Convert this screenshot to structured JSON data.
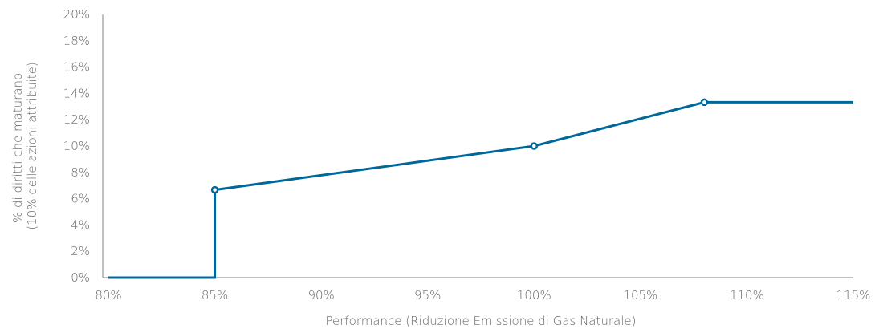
{
  "chart_data": {
    "type": "line",
    "title": "",
    "xlabel": "Performance (Riduzione Emissione di Gas Naturale)",
    "ylabel_lines": [
      "% di diritti che maturano",
      "(10% delle azioni attribuite)"
    ],
    "xlim": [
      80,
      115
    ],
    "ylim": [
      0,
      20
    ],
    "x_ticks": [
      80,
      85,
      90,
      95,
      100,
      105,
      110,
      115
    ],
    "x_tick_labels": [
      "80%",
      "85%",
      "90%",
      "95%",
      "100%",
      "105%",
      "110%",
      "115%"
    ],
    "y_ticks": [
      0,
      2,
      4,
      6,
      8,
      10,
      12,
      14,
      16,
      18,
      20
    ],
    "y_tick_labels": [
      "0%",
      "2%",
      "4%",
      "6%",
      "8%",
      "10%",
      "12%",
      "14%",
      "16%",
      "18%",
      "20%"
    ],
    "grid": false,
    "legend": "none",
    "series": [
      {
        "color": "#00679a",
        "points": [
          {
            "x": 80,
            "y": 0
          },
          {
            "x": 85,
            "y": 0
          },
          {
            "x": 85,
            "y": 6.67
          },
          {
            "x": 100,
            "y": 10
          },
          {
            "x": 108,
            "y": 13.33
          },
          {
            "x": 115,
            "y": 13.33
          }
        ],
        "markers": [
          {
            "x": 85,
            "y": 6.67
          },
          {
            "x": 100,
            "y": 10
          },
          {
            "x": 108,
            "y": 13.33
          }
        ]
      }
    ]
  }
}
